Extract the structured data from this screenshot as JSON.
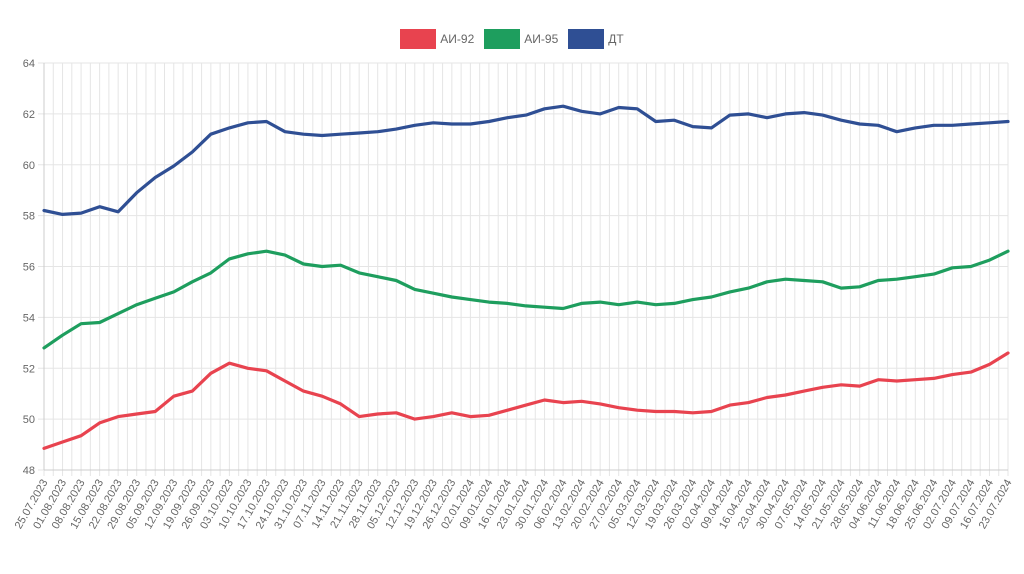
{
  "chart_data": {
    "type": "line",
    "ylim": [
      48,
      64
    ],
    "yticks": [
      48,
      50,
      52,
      54,
      56,
      58,
      60,
      62,
      64
    ],
    "grid": true,
    "legend_position": "top-center",
    "categories": [
      "25.07.2023",
      "01.08.2023",
      "08.08.2023",
      "15.08.2023",
      "22.08.2023",
      "29.08.2023",
      "05.09.2023",
      "12.09.2023",
      "19.09.2023",
      "26.09.2023",
      "03.10.2023",
      "10.10.2023",
      "17.10.2023",
      "24.10.2023",
      "31.10.2023",
      "07.11.2023",
      "14.11.2023",
      "21.11.2023",
      "28.11.2023",
      "05.12.2023",
      "12.12.2023",
      "19.12.2023",
      "26.12.2023",
      "02.01.2024",
      "09.01.2024",
      "16.01.2024",
      "23.01.2024",
      "30.01.2024",
      "06.02.2024",
      "13.02.2024",
      "20.02.2024",
      "27.02.2024",
      "05.03.2024",
      "12.03.2024",
      "19.03.2024",
      "26.03.2024",
      "02.04.2024",
      "09.04.2024",
      "16.04.2024",
      "23.04.2024",
      "30.04.2024",
      "07.05.2024",
      "14.05.2024",
      "21.05.2024",
      "28.05.2024",
      "04.06.2024",
      "11.06.2024",
      "18.06.2024",
      "25.06.2024",
      "02.07.2024",
      "09.07.2024",
      "16.07.2024",
      "23.07.2024"
    ],
    "series": [
      {
        "name": "АИ-92",
        "color": "#e8434f",
        "values": [
          48.85,
          49.1,
          49.35,
          49.85,
          50.1,
          50.2,
          50.3,
          50.9,
          51.1,
          51.8,
          52.2,
          52.0,
          51.9,
          51.5,
          51.1,
          50.9,
          50.6,
          50.1,
          50.2,
          50.25,
          50.0,
          50.1,
          50.25,
          50.1,
          50.15,
          50.35,
          50.55,
          50.75,
          50.65,
          50.7,
          50.6,
          50.45,
          50.35,
          50.3,
          50.3,
          50.25,
          50.3,
          50.55,
          50.65,
          50.85,
          50.95,
          51.1,
          51.25,
          51.35,
          51.3,
          51.55,
          51.5,
          51.55,
          51.6,
          51.75,
          51.85,
          52.15,
          52.6
        ]
      },
      {
        "name": "АИ-95",
        "color": "#1e9e5e",
        "values": [
          52.8,
          53.3,
          53.75,
          53.8,
          54.15,
          54.5,
          54.75,
          55.0,
          55.4,
          55.75,
          56.3,
          56.5,
          56.6,
          56.45,
          56.1,
          56.0,
          56.05,
          55.75,
          55.6,
          55.45,
          55.1,
          54.95,
          54.8,
          54.7,
          54.6,
          54.55,
          54.45,
          54.4,
          54.35,
          54.55,
          54.6,
          54.5,
          54.6,
          54.5,
          54.55,
          54.7,
          54.8,
          55.0,
          55.15,
          55.4,
          55.5,
          55.45,
          55.4,
          55.15,
          55.2,
          55.45,
          55.5,
          55.6,
          55.7,
          55.95,
          56.0,
          56.25,
          56.6
        ]
      },
      {
        "name": "ДТ",
        "color": "#2f4f94",
        "values": [
          58.2,
          58.05,
          58.1,
          58.35,
          58.15,
          58.9,
          59.5,
          59.95,
          60.5,
          61.2,
          61.45,
          61.65,
          61.7,
          61.3,
          61.2,
          61.15,
          61.2,
          61.25,
          61.3,
          61.4,
          61.55,
          61.65,
          61.6,
          61.6,
          61.7,
          61.85,
          61.95,
          62.2,
          62.3,
          62.1,
          62.0,
          62.25,
          62.2,
          61.7,
          61.75,
          61.5,
          61.45,
          61.95,
          62.0,
          61.85,
          62.0,
          62.05,
          61.95,
          61.75,
          61.6,
          61.55,
          61.3,
          61.45,
          61.55,
          61.55,
          61.6,
          61.65,
          61.7
        ]
      }
    ]
  }
}
